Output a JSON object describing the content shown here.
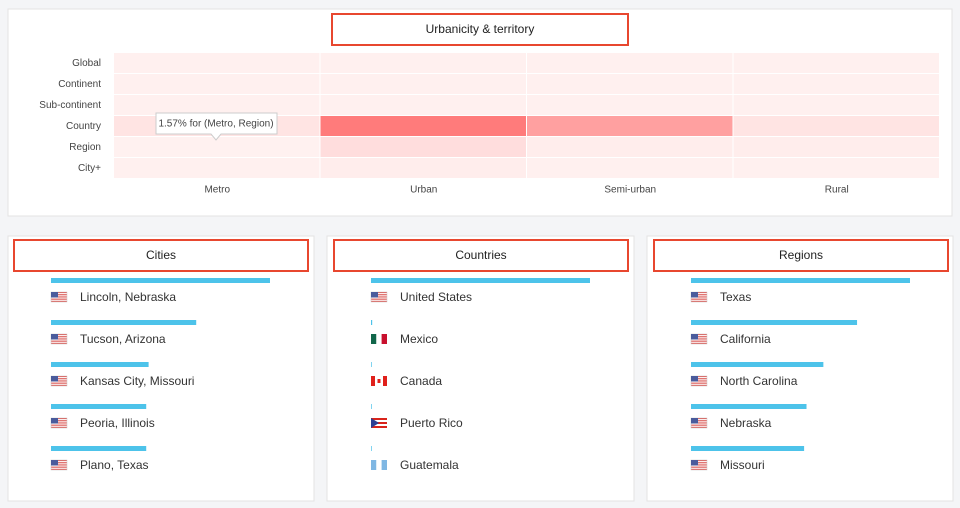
{
  "chart_data": [
    {
      "type": "heatmap",
      "title": "Urbanicity & territory",
      "x_categories": [
        "Metro",
        "Urban",
        "Semi-urban",
        "Rural"
      ],
      "y_categories": [
        "Global",
        "Continent",
        "Sub-continent",
        "Country",
        "Region",
        "City+"
      ],
      "values": [
        [
          2,
          2,
          2,
          2
        ],
        [
          2,
          2,
          2,
          2
        ],
        [
          2,
          2,
          2,
          2
        ],
        [
          6,
          40,
          28,
          6
        ],
        [
          1.57,
          8,
          3,
          3
        ],
        [
          2,
          3,
          2,
          2
        ]
      ],
      "tooltip": "1.57% for (Metro, Region)",
      "color": "#ff7b7b"
    },
    {
      "type": "bar",
      "title": "Cities",
      "categories": [
        "Lincoln, Nebraska",
        "Tucson, Arizona",
        "Kansas City, Missouri",
        "Peoria, Illinois",
        "Plano, Texas"
      ],
      "values": [
        9.2,
        6.1,
        4.1,
        4.0,
        4.0
      ],
      "color": "#4dc3ea"
    },
    {
      "type": "bar",
      "title": "Countries",
      "categories": [
        "United States",
        "Mexico",
        "Canada",
        "Puerto Rico",
        "Guatemala"
      ],
      "values": [
        93,
        0.5,
        0.3,
        0.3,
        0.3
      ],
      "color": "#4dc3ea"
    },
    {
      "type": "bar",
      "title": "Regions",
      "categories": [
        "Texas",
        "California",
        "North Carolina",
        "Nebraska",
        "Missouri"
      ],
      "values": [
        9.1,
        6.9,
        5.5,
        4.8,
        4.7
      ],
      "color": "#4dc3ea"
    }
  ]
}
